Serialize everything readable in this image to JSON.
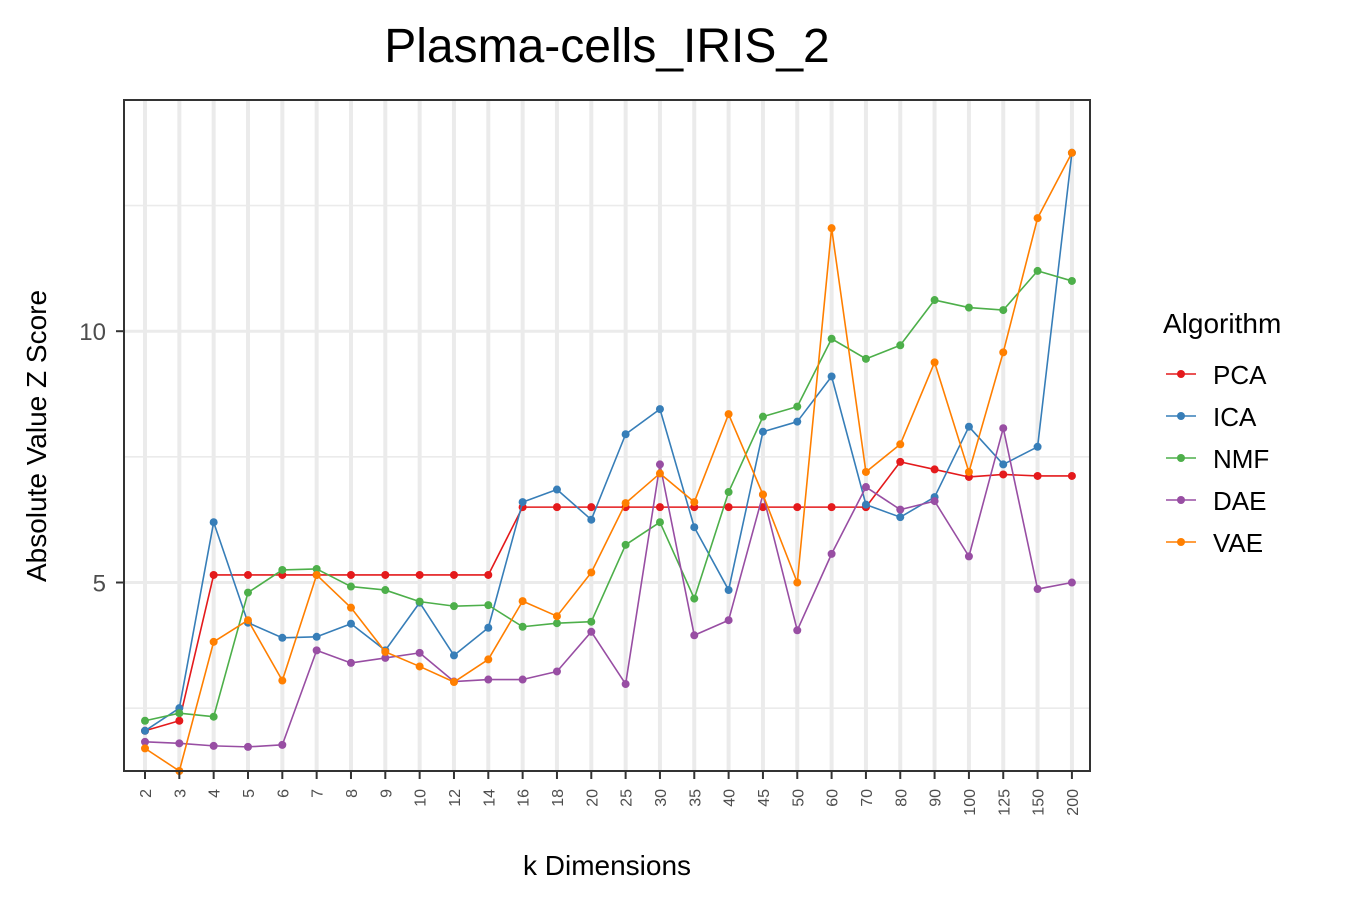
{
  "chart_data": {
    "type": "line",
    "title": "Plasma-cells_IRIS_2",
    "xlabel": "k Dimensions",
    "ylabel": "Absolute Value Z Score",
    "categories": [
      "2",
      "3",
      "4",
      "5",
      "6",
      "7",
      "8",
      "9",
      "10",
      "12",
      "14",
      "16",
      "18",
      "20",
      "25",
      "30",
      "35",
      "40",
      "45",
      "50",
      "60",
      "70",
      "80",
      "90",
      "100",
      "125",
      "150",
      "200"
    ],
    "yticks": [
      5,
      10
    ],
    "ylim": [
      1.25,
      14.6
    ],
    "grid": true,
    "legend": {
      "title": "Algorithm",
      "position": "right"
    },
    "series": [
      {
        "name": "PCA",
        "color": "#e41a1c",
        "values": [
          2.05,
          2.25,
          5.15,
          5.15,
          5.15,
          5.15,
          5.15,
          5.15,
          5.15,
          5.15,
          5.15,
          6.5,
          6.5,
          6.5,
          6.5,
          6.5,
          6.5,
          6.5,
          6.5,
          6.5,
          6.5,
          6.5,
          7.4,
          7.25,
          7.1,
          7.15,
          7.12,
          7.12
        ]
      },
      {
        "name": "ICA",
        "color": "#377eb8",
        "values": [
          2.05,
          2.5,
          6.2,
          4.2,
          3.9,
          3.92,
          4.18,
          3.65,
          4.6,
          3.55,
          4.1,
          6.6,
          6.85,
          6.25,
          7.95,
          8.45,
          6.1,
          4.85,
          8.0,
          8.2,
          9.1,
          6.55,
          6.3,
          6.7,
          8.1,
          7.35,
          7.7,
          13.55
        ]
      },
      {
        "name": "NMF",
        "color": "#4daf4a",
        "values": [
          2.25,
          2.4,
          2.33,
          4.8,
          5.25,
          5.27,
          4.92,
          4.85,
          4.62,
          4.53,
          4.55,
          4.12,
          4.19,
          4.22,
          5.75,
          6.2,
          4.68,
          6.8,
          8.3,
          8.5,
          9.85,
          9.45,
          9.72,
          10.62,
          10.47,
          10.42,
          11.2,
          11.0
        ]
      },
      {
        "name": "DAE",
        "color": "#984ea3",
        "values": [
          1.83,
          1.8,
          1.75,
          1.73,
          1.77,
          3.65,
          3.4,
          3.5,
          3.6,
          3.03,
          3.07,
          3.07,
          3.23,
          4.02,
          2.98,
          7.35,
          3.95,
          4.25,
          6.75,
          4.05,
          5.57,
          6.9,
          6.45,
          6.62,
          5.52,
          8.07,
          4.87,
          5.0
        ]
      },
      {
        "name": "VAE",
        "color": "#ff7f00",
        "values": [
          1.7,
          1.25,
          3.82,
          4.25,
          3.05,
          5.15,
          4.5,
          3.62,
          3.33,
          3.02,
          3.47,
          4.63,
          4.33,
          5.2,
          6.58,
          7.17,
          6.6,
          8.35,
          6.75,
          5.0,
          12.05,
          7.2,
          7.75,
          9.38,
          7.2,
          9.58,
          12.25,
          13.55
        ]
      }
    ]
  }
}
